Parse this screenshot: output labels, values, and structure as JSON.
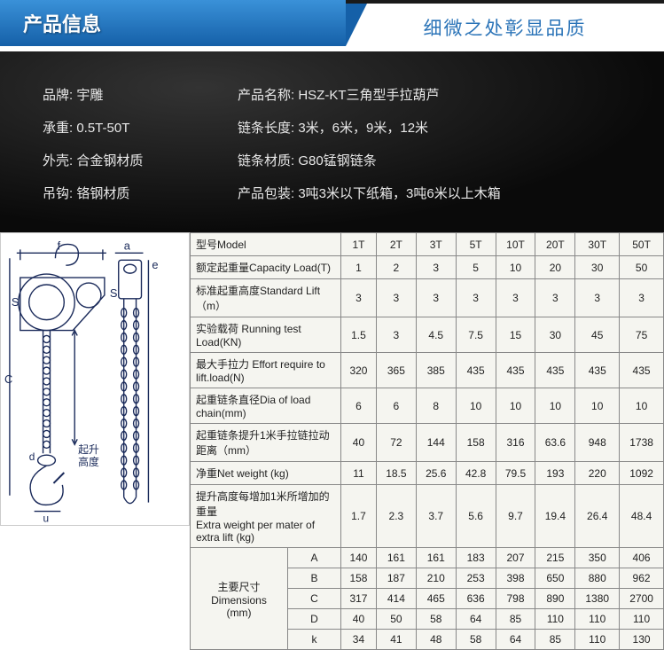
{
  "header": {
    "title_left": "产品信息",
    "title_right": "细微之处彰显品质"
  },
  "info": {
    "rows": [
      {
        "left_label": "品牌:",
        "left_val": "宇雕",
        "right_label": "产品名称:",
        "right_val": "HSZ-KT三角型手拉葫芦"
      },
      {
        "left_label": "承重:",
        "left_val": "0.5T-50T",
        "right_label": "链条长度:",
        "right_val": "3米，6米，9米，12米"
      },
      {
        "left_label": "外壳:",
        "left_val": "合金钢材质",
        "right_label": "链条材质:",
        "right_val": "G80锰钢链条"
      },
      {
        "left_label": "吊钩:",
        "left_val": "铬钢材质",
        "right_label": "产品包装:",
        "right_val": "3吨3米以下纸箱，3吨6米以上木箱"
      }
    ]
  },
  "diagram_labels": {
    "f": "f",
    "a": "a",
    "s1": "S",
    "s2": "S",
    "c": "C",
    "d": "d",
    "u": "u",
    "e": "e",
    "lift": "起升\n高度"
  },
  "spec": {
    "col_headers": [
      "1T",
      "2T",
      "3T",
      "5T",
      "10T",
      "20T",
      "30T",
      "50T"
    ],
    "rows": [
      {
        "label": "型号Model",
        "vals": [
          "1T",
          "2T",
          "3T",
          "5T",
          "10T",
          "20T",
          "30T",
          "50T"
        ],
        "is_header": true
      },
      {
        "label": "额定起重量Capacity Load(T)",
        "vals": [
          "1",
          "2",
          "3",
          "5",
          "10",
          "20",
          "30",
          "50"
        ]
      },
      {
        "label": "标准起重高度Standard Lift（m）",
        "vals": [
          "3",
          "3",
          "3",
          "3",
          "3",
          "3",
          "3",
          "3"
        ]
      },
      {
        "label": "实验载荷 Running test Load(KN)",
        "vals": [
          "1.5",
          "3",
          "4.5",
          "7.5",
          "15",
          "30",
          "45",
          "75"
        ]
      },
      {
        "label": "最大手拉力 Effort require to lift.load(N)",
        "vals": [
          "320",
          "365",
          "385",
          "435",
          "435",
          "435",
          "435",
          "435"
        ]
      },
      {
        "label": "起重链条直径Dia of load chain(mm)",
        "vals": [
          "6",
          "6",
          "8",
          "10",
          "10",
          "10",
          "10",
          "10"
        ]
      },
      {
        "label": "起重链条提升1米手拉链拉动距离（mm）",
        "vals": [
          "40",
          "72",
          "144",
          "158",
          "316",
          "63.6",
          "948",
          "1738"
        ]
      },
      {
        "label": "净重Net weight (kg)",
        "vals": [
          "11",
          "18.5",
          "25.6",
          "42.8",
          "79.5",
          "193",
          "220",
          "1092"
        ]
      },
      {
        "label": "提升高度每增加1米所增加的重量\nExtra weight per mater of extra lift (kg)",
        "vals": [
          "1.7",
          "2.3",
          "3.7",
          "5.6",
          "9.7",
          "19.4",
          "26.4",
          "48.4"
        ]
      }
    ],
    "dim_group_label": "主要尺寸\nDimensions\n(mm)",
    "dims": [
      {
        "k": "A",
        "vals": [
          "140",
          "161",
          "161",
          "183",
          "207",
          "215",
          "350",
          "406"
        ]
      },
      {
        "k": "B",
        "vals": [
          "158",
          "187",
          "210",
          "253",
          "398",
          "650",
          "880",
          "962"
        ]
      },
      {
        "k": "C",
        "vals": [
          "317",
          "414",
          "465",
          "636",
          "798",
          "890",
          "1380",
          "2700"
        ]
      },
      {
        "k": "D",
        "vals": [
          "40",
          "50",
          "58",
          "64",
          "85",
          "110",
          "110",
          "110"
        ]
      },
      {
        "k": "k",
        "vals": [
          "34",
          "41",
          "48",
          "58",
          "64",
          "85",
          "110",
          "130"
        ]
      }
    ]
  },
  "colors": {
    "header_grad_top": "#3a91d8",
    "header_grad_bot": "#1560a8",
    "header_right_text": "#2b74b8",
    "info_bg": "#0a0a0a",
    "info_text": "#e8e8e8",
    "table_border": "#888",
    "table_bg": "#f5f5f0"
  }
}
